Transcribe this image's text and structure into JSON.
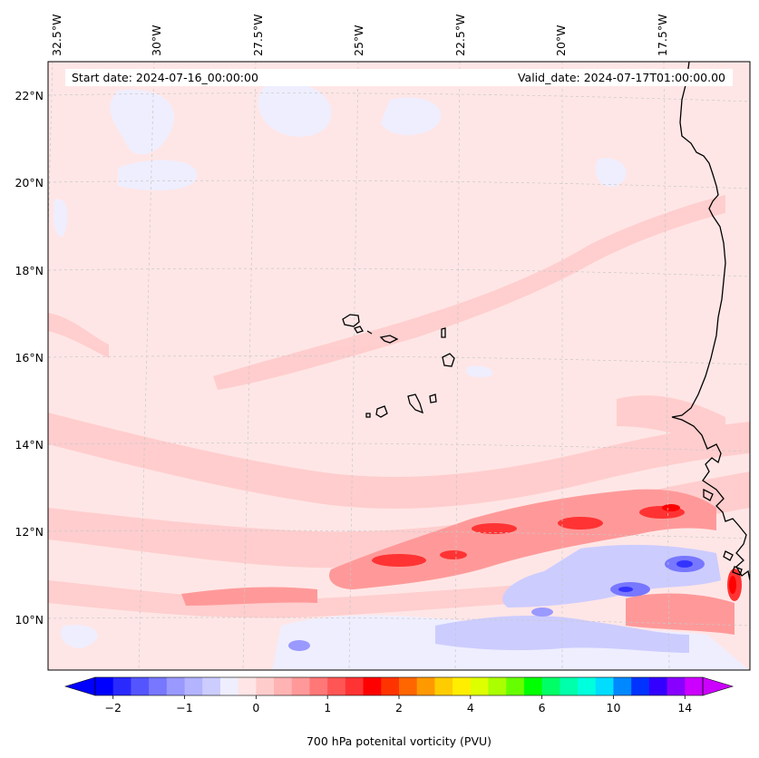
{
  "map": {
    "header": {
      "start_date": "Start date: 2024-07-16_00:00:00",
      "valid_date": "Valid_date: 2024-07-17T01:00:00.00"
    },
    "longitude_labels": [
      "32.5°W",
      "30°W",
      "27.5°W",
      "25°W",
      "22.5°W",
      "20°W",
      "17.5°W"
    ],
    "latitude_labels": [
      "22°N",
      "20°N",
      "18°N",
      "16°N",
      "14°N",
      "12°N",
      "10°N"
    ],
    "colorbar": {
      "label": "700 hPa potenital vorticity (PVU)",
      "tick_labels": [
        "−2",
        "−1",
        "0",
        "1",
        "2",
        "4",
        "6",
        "10",
        "14"
      ],
      "colors": [
        "#0000ff",
        "#2a2aff",
        "#5555ff",
        "#7777ff",
        "#9999ff",
        "#b3b3ff",
        "#ccccff",
        "#eeeeff",
        "#ffe5e5",
        "#ffcccc",
        "#ffb3b3",
        "#ff9999",
        "#ff7777",
        "#ff5555",
        "#ff3333",
        "#ff0000",
        "#ff3300",
        "#ff6600",
        "#ff9900",
        "#ffcc00",
        "#ffee00",
        "#ddff00",
        "#aaff00",
        "#66ff00",
        "#00ff00",
        "#00ff66",
        "#00ffaa",
        "#00ffdd",
        "#00ddff",
        "#0088ff",
        "#0033ff",
        "#3300ff",
        "#8800ff",
        "#cc00ff"
      ],
      "extend_low": "#0000ff",
      "extend_high": "#cc00ff"
    },
    "palette": {
      "background": "#ffe6e6",
      "light_red": "#ffcccc",
      "mid_red": "#ff9999",
      "strong_red": "#ff3333",
      "pale_blue": "#eeeeff",
      "light_blue": "#ccccff",
      "blue": "#7777ff",
      "deep_blue": "#3333ff",
      "coast": "#000000",
      "grid": "#bbbbbb"
    }
  }
}
